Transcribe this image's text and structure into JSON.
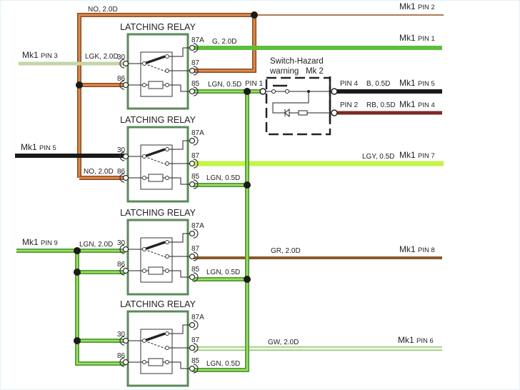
{
  "relays": [
    {
      "title": "LATCHING RELAY",
      "pins": {
        "p30": "30",
        "p86": "86",
        "p87a": "87A",
        "p87": "87",
        "p85": "85"
      }
    },
    {
      "title": "LATCHING RELAY",
      "pins": {
        "p30": "30",
        "p86": "86",
        "p87a": "87A",
        "p87": "87",
        "p85": "85"
      }
    },
    {
      "title": "LATCHING RELAY",
      "pins": {
        "p30": "30",
        "p86": "86",
        "p87a": "87A",
        "p87": "87",
        "p85": "85"
      }
    },
    {
      "title": "LATCHING RELAY",
      "pins": {
        "p30": "30",
        "p86": "86",
        "p87a": "87A",
        "p87": "87",
        "p85": "85"
      }
    }
  ],
  "wires": {
    "no_top": "NO, 2.0D",
    "no_bottom": "NO, 2.0D",
    "lgk": "LGK, 2.0D",
    "g": "G, 2.0D",
    "lgn1": "LGN, 0.5D",
    "lgn2": "LGN, 0.5D",
    "lgn3": "LGN, 0.5D",
    "lgn4": "LGN, 0.5D",
    "lgn_in": "LGN, 2.0D",
    "lgy": "LGY, 0.5D",
    "gr": "GR, 2.0D",
    "gw": "GW, 2.0D",
    "b": "B, 0.5D",
    "rb": "RB, 0.5D"
  },
  "connectors": {
    "mk1_pin2": {
      "mk": "Mk1",
      "pin": "PIN 2"
    },
    "mk1_pin1": {
      "mk": "Mk1",
      "pin": "PIN 1"
    },
    "mk1_pin3": {
      "mk": "Mk1",
      "pin": "PIN 3"
    },
    "mk1_pin5_right": {
      "mk": "Mk1",
      "pin": "PIN 5"
    },
    "mk1_pin4": {
      "mk": "Mk1",
      "pin": "PIN 4"
    },
    "mk1_pin5_left": {
      "mk": "Mk1",
      "pin": "PIN 5"
    },
    "mk1_pin7": {
      "mk": "Mk1",
      "pin": "PIN 7"
    },
    "mk1_pin9": {
      "mk": "Mk1",
      "pin": "PIN 9"
    },
    "mk1_pin8": {
      "mk": "Mk1",
      "pin": "PIN 8"
    },
    "mk1_pin6": {
      "mk": "Mk1",
      "pin": "PIN 6"
    }
  },
  "switch": {
    "title_line1": "Switch-Hazard",
    "title_line2": "warning",
    "mk": "Mk 2",
    "pin1": "PIN 1",
    "pin4": "PIN 4",
    "pin2": "PIN 2"
  },
  "colors": {
    "orange": "#c8703a",
    "green": "#5cbf3a",
    "light_green": "#b7f03c",
    "lgn": "#6cc84a",
    "black": "#1a1a1a",
    "red_brown": "#7a2a24",
    "brown": "#8a5a28",
    "relay_border": "#5a8a5a"
  }
}
